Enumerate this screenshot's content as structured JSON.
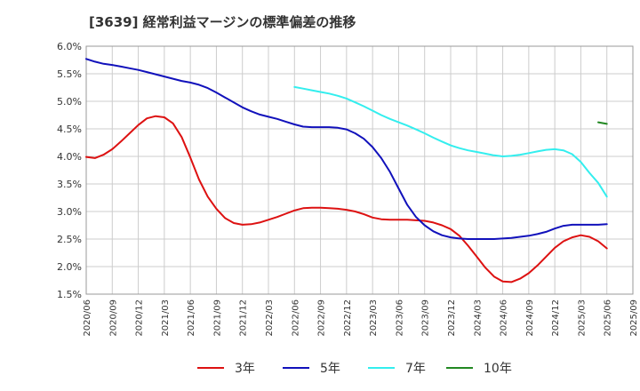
{
  "title": "[3639]  経常利益マージンの標準偏差の推移",
  "chart_data": {
    "type": "line",
    "title": "[3639]  経常利益マージンの標準偏差の推移",
    "xlabel": "",
    "ylabel": "",
    "ylim": [
      1.5,
      6.0
    ],
    "yticks": [
      "1.5%",
      "2.0%",
      "2.5%",
      "3.0%",
      "3.5%",
      "4.0%",
      "4.5%",
      "5.0%",
      "5.5%",
      "6.0%"
    ],
    "xticks": [
      "2020/06",
      "2020/09",
      "2020/12",
      "2021/03",
      "2021/06",
      "2021/09",
      "2021/12",
      "2022/03",
      "2022/06",
      "2022/09",
      "2022/12",
      "2023/03",
      "2023/06",
      "2023/09",
      "2023/12",
      "2024/03",
      "2024/06",
      "2024/09",
      "2024/12",
      "2025/03",
      "2025/06",
      "2025/09"
    ],
    "grid": true,
    "legend_position": "bottom",
    "series": [
      {
        "name": "3年",
        "color": "#dd1111",
        "x": [
          "2020/06",
          "2020/07",
          "2020/08",
          "2020/09",
          "2020/10",
          "2020/11",
          "2020/12",
          "2021/01",
          "2021/02",
          "2021/03",
          "2021/04",
          "2021/05",
          "2021/06",
          "2021/07",
          "2021/08",
          "2021/09",
          "2021/10",
          "2021/11",
          "2021/12",
          "2022/01",
          "2022/02",
          "2022/03",
          "2022/04",
          "2022/05",
          "2022/06",
          "2022/07",
          "2022/08",
          "2022/09",
          "2022/10",
          "2022/11",
          "2022/12",
          "2023/01",
          "2023/02",
          "2023/03",
          "2023/04",
          "2023/05",
          "2023/06",
          "2023/07",
          "2023/08",
          "2023/09",
          "2023/10",
          "2023/11",
          "2023/12",
          "2024/01",
          "2024/02",
          "2024/03",
          "2024/04",
          "2024/05",
          "2024/06",
          "2024/07",
          "2024/08",
          "2024/09",
          "2024/10",
          "2024/11",
          "2024/12",
          "2025/01",
          "2025/02",
          "2025/03",
          "2025/04",
          "2025/05",
          "2025/06"
        ],
        "values": [
          3.99,
          3.97,
          4.03,
          4.13,
          4.27,
          4.42,
          4.57,
          4.69,
          4.73,
          4.71,
          4.6,
          4.35,
          3.98,
          3.58,
          3.27,
          3.05,
          2.88,
          2.79,
          2.76,
          2.77,
          2.8,
          2.85,
          2.9,
          2.96,
          3.02,
          3.06,
          3.07,
          3.07,
          3.06,
          3.05,
          3.03,
          3.0,
          2.95,
          2.89,
          2.86,
          2.85,
          2.85,
          2.85,
          2.84,
          2.83,
          2.8,
          2.75,
          2.68,
          2.56,
          2.38,
          2.18,
          1.98,
          1.82,
          1.73,
          1.72,
          1.78,
          1.88,
          2.02,
          2.18,
          2.34,
          2.46,
          2.53,
          2.57,
          2.54,
          2.46,
          2.33
        ]
      },
      {
        "name": "5年",
        "color": "#1111bb",
        "x": [
          "2020/06",
          "2020/07",
          "2020/08",
          "2020/09",
          "2020/10",
          "2020/11",
          "2020/12",
          "2021/01",
          "2021/02",
          "2021/03",
          "2021/04",
          "2021/05",
          "2021/06",
          "2021/07",
          "2021/08",
          "2021/09",
          "2021/10",
          "2021/11",
          "2021/12",
          "2022/01",
          "2022/02",
          "2022/03",
          "2022/04",
          "2022/05",
          "2022/06",
          "2022/07",
          "2022/08",
          "2022/09",
          "2022/10",
          "2022/11",
          "2022/12",
          "2023/01",
          "2023/02",
          "2023/03",
          "2023/04",
          "2023/05",
          "2023/06",
          "2023/07",
          "2023/08",
          "2023/09",
          "2023/10",
          "2023/11",
          "2023/12",
          "2024/01",
          "2024/02",
          "2024/03",
          "2024/04",
          "2024/05",
          "2024/06",
          "2024/07",
          "2024/08",
          "2024/09",
          "2024/10",
          "2024/11",
          "2024/12",
          "2025/01",
          "2025/02",
          "2025/03",
          "2025/04",
          "2025/05",
          "2025/06"
        ],
        "values": [
          5.77,
          5.72,
          5.68,
          5.66,
          5.63,
          5.6,
          5.57,
          5.53,
          5.49,
          5.45,
          5.41,
          5.37,
          5.34,
          5.3,
          5.24,
          5.16,
          5.07,
          4.98,
          4.89,
          4.82,
          4.76,
          4.72,
          4.68,
          4.63,
          4.58,
          4.54,
          4.53,
          4.53,
          4.53,
          4.52,
          4.49,
          4.42,
          4.32,
          4.17,
          3.97,
          3.72,
          3.42,
          3.12,
          2.9,
          2.75,
          2.64,
          2.57,
          2.53,
          2.51,
          2.5,
          2.5,
          2.5,
          2.5,
          2.51,
          2.52,
          2.54,
          2.56,
          2.59,
          2.63,
          2.69,
          2.74,
          2.76,
          2.76,
          2.76,
          2.76,
          2.77
        ]
      },
      {
        "name": "7年",
        "color": "#33eeee",
        "x": [
          "2022/06",
          "2022/07",
          "2022/08",
          "2022/09",
          "2022/10",
          "2022/11",
          "2022/12",
          "2023/01",
          "2023/02",
          "2023/03",
          "2023/04",
          "2023/05",
          "2023/06",
          "2023/07",
          "2023/08",
          "2023/09",
          "2023/10",
          "2023/11",
          "2023/12",
          "2024/01",
          "2024/02",
          "2024/03",
          "2024/04",
          "2024/05",
          "2024/06",
          "2024/07",
          "2024/08",
          "2024/09",
          "2024/10",
          "2024/11",
          "2024/12",
          "2025/01",
          "2025/02",
          "2025/03",
          "2025/04",
          "2025/05",
          "2025/06"
        ],
        "values": [
          5.26,
          5.23,
          5.2,
          5.17,
          5.14,
          5.1,
          5.05,
          4.98,
          4.91,
          4.83,
          4.75,
          4.68,
          4.62,
          4.56,
          4.49,
          4.42,
          4.34,
          4.27,
          4.2,
          4.15,
          4.11,
          4.08,
          4.05,
          4.02,
          4.0,
          4.01,
          4.03,
          4.06,
          4.09,
          4.12,
          4.13,
          4.11,
          4.04,
          3.9,
          3.7,
          3.52,
          3.27
        ]
      },
      {
        "name": "10年",
        "color": "#228822",
        "x": [
          "2025/05",
          "2025/06"
        ],
        "values": [
          4.62,
          4.59
        ]
      }
    ]
  }
}
